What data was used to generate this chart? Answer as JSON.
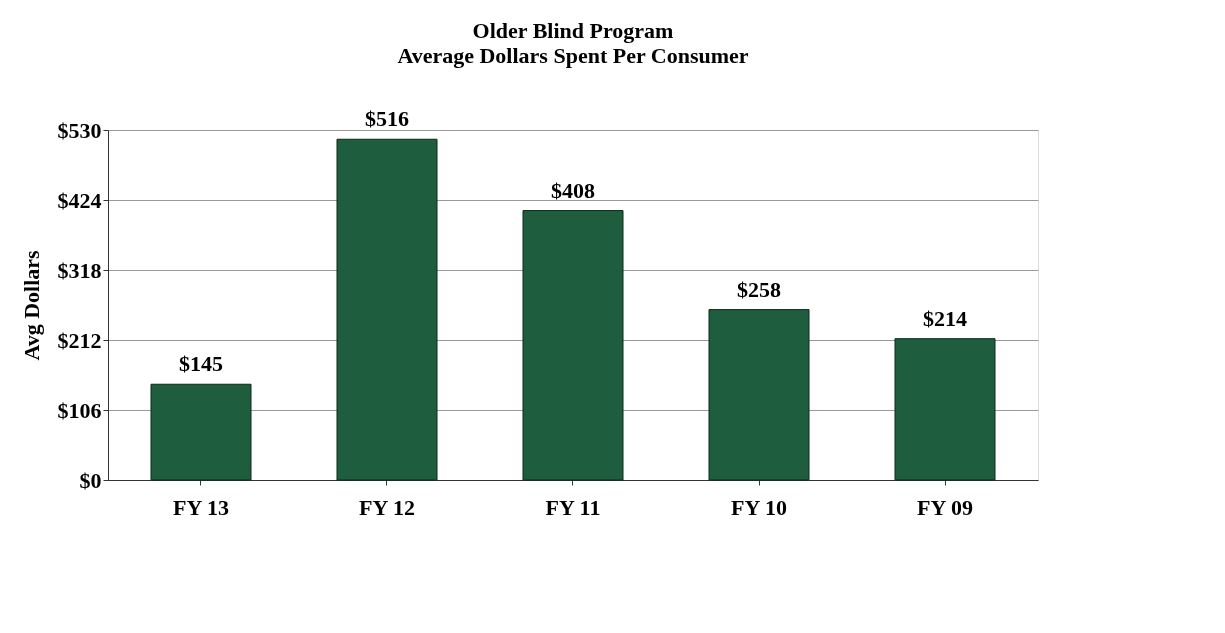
{
  "chart_data": {
    "type": "bar",
    "title": "Older Blind Program",
    "subtitle": "Average Dollars Spent Per Consumer",
    "ylabel": "Avg Dollars",
    "categories": [
      "FY 13",
      "FY 12",
      "FY 11",
      "FY 10",
      "FY 09"
    ],
    "values": [
      145,
      516,
      408,
      258,
      214
    ],
    "value_labels": [
      "$145",
      "$516",
      "$408",
      "$258",
      "$214"
    ],
    "color": "#1e5e3e",
    "ylim": [
      0,
      530
    ],
    "yticks": [
      {
        "value": 0,
        "label": "$0"
      },
      {
        "value": 106,
        "label": "$106"
      },
      {
        "value": 212,
        "label": "$212"
      },
      {
        "value": 318,
        "label": "$318"
      },
      {
        "value": 424,
        "label": "$424"
      },
      {
        "value": 530,
        "label": "$530"
      }
    ],
    "grid": "y"
  }
}
